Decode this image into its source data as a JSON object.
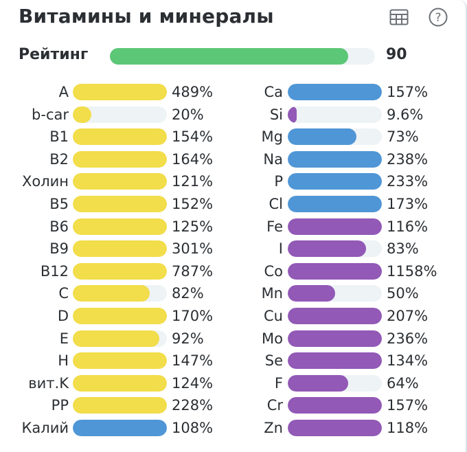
{
  "header": {
    "title": "Витамины и минералы",
    "table_icon": "table-icon",
    "help_icon": "help-icon"
  },
  "rating": {
    "label": "Рейтинг",
    "value": "90",
    "fraction": 0.9,
    "color": "#5cc777"
  },
  "colors": {
    "yellow": "#f2dd4a",
    "blue": "#4f96d6",
    "purple": "#9259b6",
    "track": "#eef3f6"
  },
  "left_column": [
    {
      "label": "A",
      "value": "489%",
      "percent": 489,
      "color": "yellow"
    },
    {
      "label": "b-car",
      "value": "20%",
      "percent": 20,
      "color": "yellow"
    },
    {
      "label": "B1",
      "value": "154%",
      "percent": 154,
      "color": "yellow"
    },
    {
      "label": "B2",
      "value": "164%",
      "percent": 164,
      "color": "yellow"
    },
    {
      "label": "Холин",
      "value": "121%",
      "percent": 121,
      "color": "yellow"
    },
    {
      "label": "B5",
      "value": "152%",
      "percent": 152,
      "color": "yellow"
    },
    {
      "label": "B6",
      "value": "125%",
      "percent": 125,
      "color": "yellow"
    },
    {
      "label": "B9",
      "value": "301%",
      "percent": 301,
      "color": "yellow"
    },
    {
      "label": "B12",
      "value": "787%",
      "percent": 787,
      "color": "yellow"
    },
    {
      "label": "C",
      "value": "82%",
      "percent": 82,
      "color": "yellow"
    },
    {
      "label": "D",
      "value": "170%",
      "percent": 170,
      "color": "yellow"
    },
    {
      "label": "E",
      "value": "92%",
      "percent": 92,
      "color": "yellow"
    },
    {
      "label": "H",
      "value": "147%",
      "percent": 147,
      "color": "yellow"
    },
    {
      "label": "вит.K",
      "value": "124%",
      "percent": 124,
      "color": "yellow"
    },
    {
      "label": "PP",
      "value": "228%",
      "percent": 228,
      "color": "yellow"
    },
    {
      "label": "Калий",
      "value": "108%",
      "percent": 108,
      "color": "blue"
    }
  ],
  "right_column": [
    {
      "label": "Ca",
      "value": "157%",
      "percent": 157,
      "color": "blue"
    },
    {
      "label": "Si",
      "value": "9.6%",
      "percent": 9.6,
      "color": "purple"
    },
    {
      "label": "Mg",
      "value": "73%",
      "percent": 73,
      "color": "blue"
    },
    {
      "label": "Na",
      "value": "238%",
      "percent": 238,
      "color": "blue"
    },
    {
      "label": "P",
      "value": "233%",
      "percent": 233,
      "color": "blue"
    },
    {
      "label": "Cl",
      "value": "173%",
      "percent": 173,
      "color": "blue"
    },
    {
      "label": "Fe",
      "value": "116%",
      "percent": 116,
      "color": "purple"
    },
    {
      "label": "I",
      "value": "83%",
      "percent": 83,
      "color": "purple"
    },
    {
      "label": "Co",
      "value": "1158%",
      "percent": 1158,
      "color": "purple"
    },
    {
      "label": "Mn",
      "value": "50%",
      "percent": 50,
      "color": "purple"
    },
    {
      "label": "Cu",
      "value": "207%",
      "percent": 207,
      "color": "purple"
    },
    {
      "label": "Mo",
      "value": "236%",
      "percent": 236,
      "color": "purple"
    },
    {
      "label": "Se",
      "value": "134%",
      "percent": 134,
      "color": "purple"
    },
    {
      "label": "F",
      "value": "64%",
      "percent": 64,
      "color": "purple"
    },
    {
      "label": "Cr",
      "value": "157%",
      "percent": 157,
      "color": "purple"
    },
    {
      "label": "Zn",
      "value": "118%",
      "percent": 118,
      "color": "purple"
    }
  ]
}
